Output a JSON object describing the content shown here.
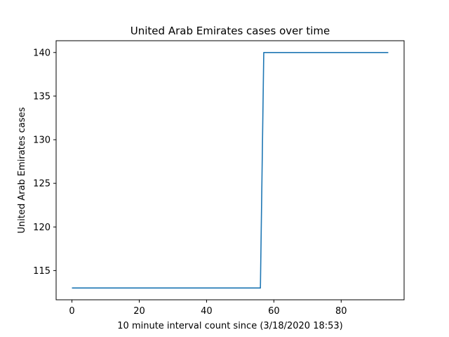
{
  "chart_data": {
    "type": "line",
    "title": "United Arab Emirates cases over time",
    "xlabel": "10 minute interval count since (3/18/2020 18:53)",
    "ylabel": "United Arab Emirates cases",
    "xlim": [
      -4.7,
      98.7
    ],
    "ylim": [
      111.65,
      141.35
    ],
    "xticks": [
      0,
      20,
      40,
      60,
      80
    ],
    "yticks": [
      115,
      120,
      125,
      130,
      135,
      140
    ],
    "grid": false,
    "legend": "none",
    "series": [
      {
        "color": "#1f77b4",
        "x": [
          0,
          56,
          57,
          94
        ],
        "y": [
          113,
          113,
          140,
          140
        ]
      }
    ]
  }
}
